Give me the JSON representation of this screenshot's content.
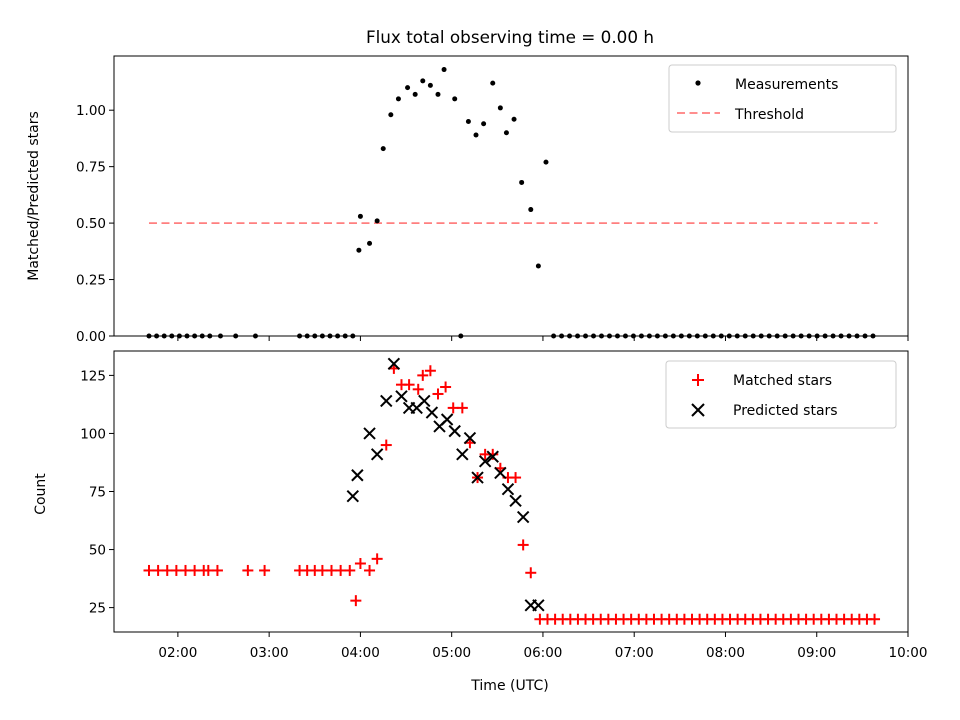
{
  "title": "Flux total observing time = 0.00 h",
  "chart_data": [
    {
      "type": "scatter",
      "ylabel": "Matched/Predicted stars",
      "xlim": [
        "01:18",
        "10:00"
      ],
      "ylim": [
        0,
        1.24
      ],
      "yticks": [
        "0.00",
        "0.25",
        "0.50",
        "0.75",
        "1.00"
      ],
      "legend_position": "top-right",
      "series": [
        {
          "name": "Measurements",
          "kind": "scatter",
          "color": "#000000",
          "x": [
            "01:41",
            "01:46",
            "01:51",
            "01:56",
            "02:01",
            "02:06",
            "02:11",
            "02:16",
            "02:21",
            "02:28",
            "02:38",
            "02:51",
            "03:20",
            "03:25",
            "03:30",
            "03:35",
            "03:40",
            "03:45",
            "03:50",
            "03:55",
            "03:59",
            "04:00",
            "04:06",
            "04:11",
            "04:15",
            "04:20",
            "04:25",
            "04:31",
            "04:36",
            "04:41",
            "04:46",
            "04:51",
            "04:55",
            "05:02",
            "05:06",
            "05:11",
            "05:16",
            "05:21",
            "05:27",
            "05:32",
            "05:36",
            "05:41",
            "05:46",
            "05:52",
            "05:57",
            "06:02"
          ],
          "y": [
            0,
            0,
            0,
            0,
            0,
            0,
            0,
            0,
            0,
            0,
            0,
            0,
            0,
            0,
            0,
            0,
            0,
            0,
            0,
            0,
            0.38,
            0.53,
            0.41,
            0.51,
            0.83,
            0.98,
            1.05,
            1.1,
            1.07,
            1.13,
            1.11,
            1.07,
            1.18,
            1.05,
            0,
            0.95,
            0.89,
            0.94,
            1.12,
            1.01,
            0.9,
            0.96,
            0.68,
            0.56,
            0.31,
            0.77
          ]
        },
        {
          "name": "Threshold",
          "kind": "line",
          "color": "#ff7f7f",
          "x": [
            "01:41",
            "09:40"
          ],
          "y": [
            0.5,
            0.5
          ]
        }
      ]
    },
    {
      "type": "scatter",
      "xlabel": "Time (UTC)",
      "ylabel": "Count",
      "xlim": [
        "01:18",
        "10:00"
      ],
      "ylim": [
        14.5,
        135.5
      ],
      "yticks": [
        "25",
        "50",
        "75",
        "100",
        "125"
      ],
      "xticks": [
        "02:00",
        "03:00",
        "04:00",
        "05:00",
        "06:00",
        "07:00",
        "08:00",
        "09:00",
        "10:00"
      ],
      "legend_position": "top-right",
      "series": [
        {
          "name": "Matched stars",
          "marker": "+",
          "color": "#ff0000",
          "x": [
            "01:41",
            "01:47",
            "01:53",
            "01:59",
            "02:05",
            "02:11",
            "02:17",
            "02:20",
            "02:26",
            "02:46",
            "02:57",
            "03:20",
            "03:25",
            "03:30",
            "03:35",
            "03:41",
            "03:47",
            "03:53",
            "03:57",
            "04:00",
            "04:06",
            "04:11",
            "04:17",
            "04:22",
            "04:27",
            "04:32",
            "04:38",
            "04:41",
            "04:46",
            "04:51",
            "04:56",
            "05:01",
            "05:07",
            "05:12",
            "05:17",
            "05:22",
            "05:27",
            "05:32",
            "05:37",
            "05:42",
            "05:47",
            "05:52",
            "05:58",
            "06:03",
            "06:08",
            "06:13",
            "06:18",
            "06:23",
            "06:28",
            "06:33",
            "06:38",
            "06:43",
            "06:48",
            "06:53",
            "06:58",
            "07:03",
            "07:08",
            "07:13",
            "07:18",
            "07:23",
            "07:28",
            "07:33",
            "07:38",
            "07:43",
            "07:48",
            "07:53",
            "07:58",
            "08:03",
            "08:08",
            "08:13",
            "08:18",
            "08:23",
            "08:28",
            "08:33",
            "08:38",
            "08:43",
            "08:48",
            "08:53",
            "08:58",
            "09:03",
            "09:08",
            "09:13",
            "09:18",
            "09:23",
            "09:28",
            "09:33",
            "09:38"
          ],
          "y": [
            41,
            41,
            41,
            41,
            41,
            41,
            41,
            41,
            41,
            41,
            41,
            41,
            41,
            41,
            41,
            41,
            41,
            41,
            28,
            44,
            41,
            46,
            95,
            128,
            121,
            121,
            119,
            125,
            127,
            117,
            120,
            111,
            111,
            96,
            81,
            91,
            91,
            85,
            81,
            81,
            52,
            40,
            20,
            20,
            20,
            20,
            20,
            20,
            20,
            20,
            20,
            20,
            20,
            20,
            20,
            20,
            20,
            20,
            20,
            20,
            20,
            20,
            20,
            20,
            20,
            20,
            20,
            20,
            20,
            20,
            20,
            20,
            20,
            20,
            20,
            20,
            20,
            20,
            20,
            20,
            20,
            20,
            20,
            20,
            20,
            20,
            20
          ]
        },
        {
          "name": "Predicted stars",
          "marker": "x",
          "color": "#000000",
          "x": [
            "03:55",
            "03:58",
            "04:06",
            "04:11",
            "04:17",
            "04:22",
            "04:27",
            "04:32",
            "04:37",
            "04:42",
            "04:47",
            "04:52",
            "04:57",
            "05:02",
            "05:07",
            "05:12",
            "05:17",
            "05:22",
            "05:27",
            "05:32",
            "05:37",
            "05:42",
            "05:47",
            "05:52",
            "05:57"
          ],
          "y": [
            73,
            82,
            100,
            91,
            114,
            130,
            116,
            111,
            111,
            114,
            109,
            103,
            106,
            101,
            91,
            98,
            81,
            88,
            90,
            83,
            76,
            71,
            64,
            26,
            26
          ]
        }
      ]
    }
  ]
}
